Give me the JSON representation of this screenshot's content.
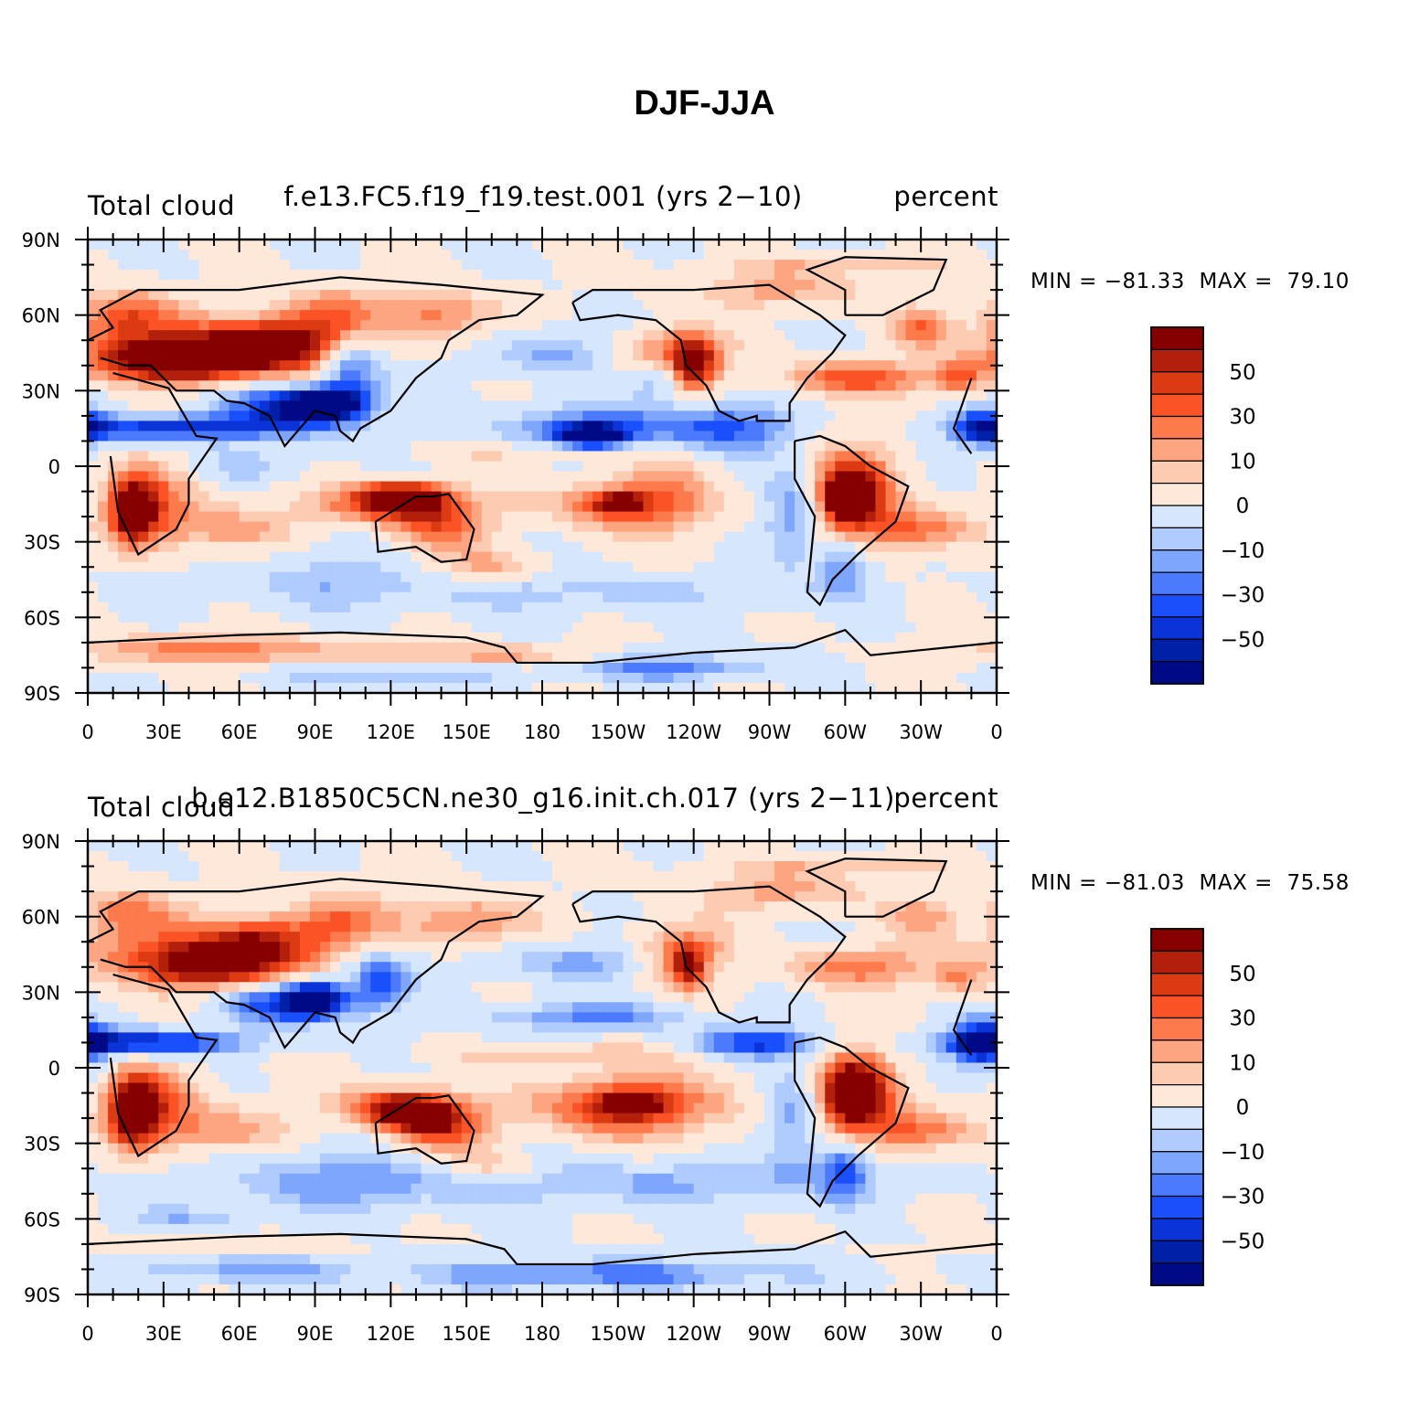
{
  "title": "DJF-JJA",
  "panels": [
    {
      "left_string": "Total cloud",
      "center_string": "f.e13.FC5.f19_f19.test.001 (yrs 2−10)",
      "right_string": "percent",
      "min_label": "MIN = −81.33",
      "max_label": "MAX =  79.10",
      "min": -81.33,
      "max": 79.1
    },
    {
      "left_string": "Total cloud",
      "center_string": "b.e12.B1850C5CN.ne30_g16.init.ch.017 (yrs 2−11)",
      "right_string": "percent",
      "min_label": "MIN = −81.03",
      "max_label": "MAX =  75.58",
      "min": -81.03,
      "max": 75.58
    }
  ],
  "map": {
    "projection": "cylindrical equidistant",
    "center_lon": 180,
    "lat_labels": [
      "90N",
      "60N",
      "30N",
      "0",
      "30S",
      "60S",
      "90S"
    ],
    "lon_labels": [
      "0",
      "30E",
      "60E",
      "90E",
      "120E",
      "150E",
      "180",
      "150W",
      "120W",
      "90W",
      "60W",
      "30W",
      "0"
    ]
  },
  "colorbar": {
    "labels": [
      "50",
      "30",
      "10",
      "0",
      "−10",
      "−30",
      "−50"
    ],
    "colors": [
      "#870000",
      "#b2200b",
      "#db3a13",
      "#fb5226",
      "#fc7a4b",
      "#fda580",
      "#fdcab2",
      "#fde8da",
      "#d6e7fd",
      "#b0cbfd",
      "#7da6fc",
      "#4b7bfc",
      "#1a4ffc",
      "#0b34d8",
      "#0020a8",
      "#000a87"
    ]
  }
}
